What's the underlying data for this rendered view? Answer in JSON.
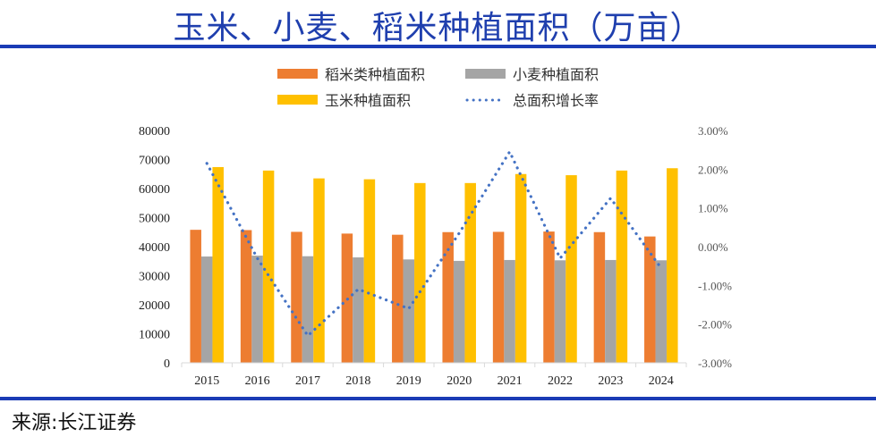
{
  "header": {
    "title": "玉米、小麦、稻米种植面积（万亩）"
  },
  "footer": {
    "source": "来源:长江证券"
  },
  "chart_data": {
    "type": "bar",
    "title": "玉米、小麦、稻米种植面积（万亩）",
    "categories": [
      "2015",
      "2016",
      "2017",
      "2018",
      "2019",
      "2020",
      "2021",
      "2022",
      "2023",
      "2024"
    ],
    "series": [
      {
        "name": "稻米类种植面积",
        "type": "bar",
        "axis": "left",
        "color": "#ed7d31",
        "values": [
          45800,
          45700,
          45100,
          44500,
          44100,
          45000,
          45100,
          45200,
          45000,
          43500
        ]
      },
      {
        "name": "小麦种植面积",
        "type": "bar",
        "axis": "left",
        "color": "#a5a5a5",
        "values": [
          36600,
          36900,
          36700,
          36300,
          35600,
          35100,
          35400,
          35300,
          35400,
          35300
        ]
      },
      {
        "name": "玉米种植面积",
        "type": "bar",
        "axis": "left",
        "color": "#ffc000",
        "values": [
          67400,
          66200,
          63500,
          63200,
          61900,
          61900,
          65000,
          64600,
          66200,
          67000
        ]
      },
      {
        "name": "总面积增长率",
        "type": "line",
        "style": "dotted",
        "axis": "right",
        "color": "#4472c4",
        "values": [
          2.15,
          -0.3,
          -2.3,
          -1.1,
          -1.6,
          0.35,
          2.45,
          -0.3,
          1.25,
          -0.55
        ]
      }
    ],
    "left_axis": {
      "ylim": [
        0,
        80000
      ],
      "ticks": [
        "0",
        "10000",
        "20000",
        "30000",
        "40000",
        "50000",
        "60000",
        "70000",
        "80000"
      ]
    },
    "right_axis": {
      "ylim": [
        -3,
        3
      ],
      "ticks": [
        "-3.00%",
        "-2.00%",
        "-1.00%",
        "0.00%",
        "1.00%",
        "2.00%",
        "3.00%"
      ]
    },
    "legend": {
      "position": "top",
      "entries": [
        "稻米类种植面积",
        "小麦种植面积",
        "玉米种植面积",
        "总面积增长率"
      ]
    },
    "grid": false
  }
}
